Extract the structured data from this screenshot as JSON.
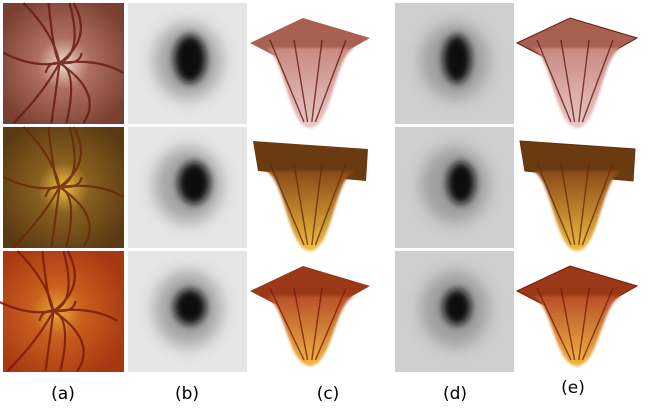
{
  "figure": {
    "column_labels": [
      "(a)",
      "(b)",
      "(c)",
      "(d)",
      "(e)"
    ]
  }
}
